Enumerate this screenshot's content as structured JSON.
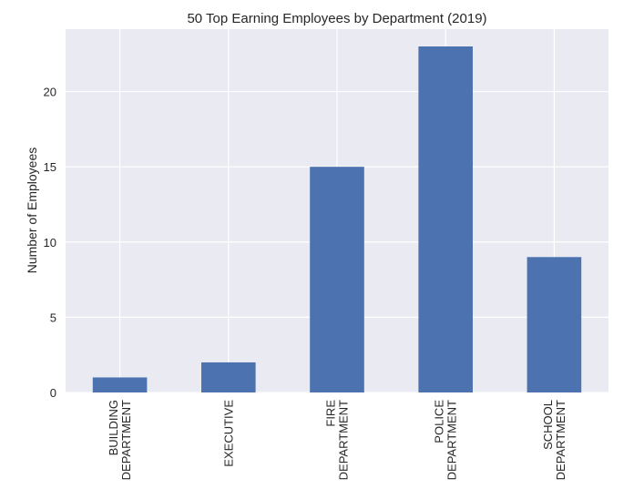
{
  "chart_data": {
    "type": "bar",
    "title": "50 Top Earning Employees by Department (2019)",
    "xlabel": "",
    "ylabel": "Number of Employees",
    "categories": [
      [
        "BUILDING",
        "DEPARTMENT"
      ],
      [
        "EXECUTIVE"
      ],
      [
        "FIRE",
        "DEPARTMENT"
      ],
      [
        "POLICE",
        "DEPARTMENT"
      ],
      [
        "SCHOOL",
        "DEPARTMENT"
      ]
    ],
    "values": [
      1,
      2,
      15,
      23,
      9
    ],
    "ylim": [
      0,
      24.15
    ],
    "yticks": [
      0,
      5,
      10,
      15,
      20
    ],
    "grid": true,
    "bar_color": "#4c72b0",
    "background_color": "#eaeaf2",
    "grid_color": "#ffffff"
  }
}
